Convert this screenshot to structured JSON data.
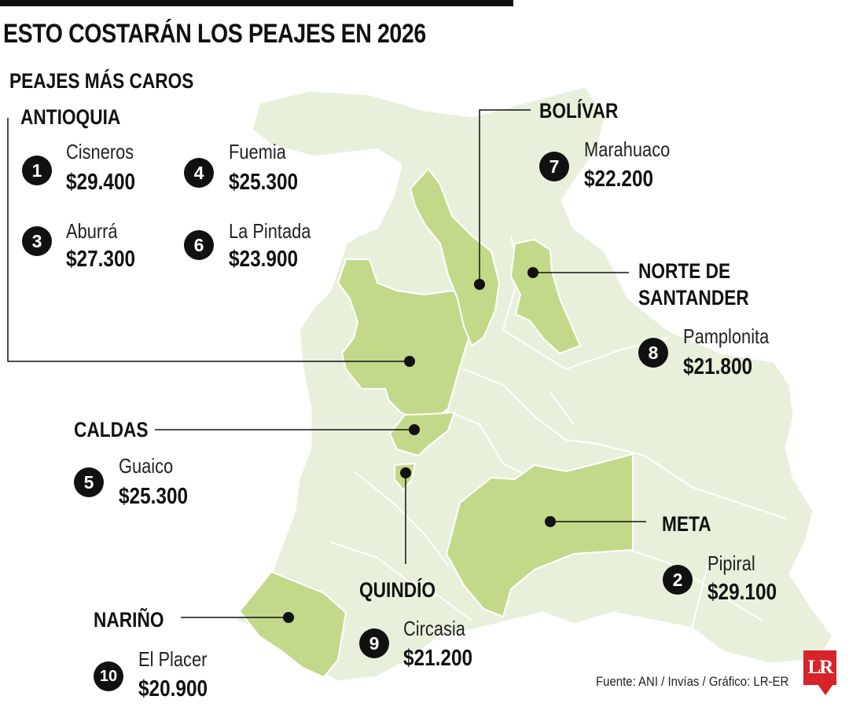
{
  "title": "ESTO COSTARÁN LOS PEAJES EN 2026",
  "subtitle": "PEAJES MÁS CAROS",
  "colors": {
    "country": "#e8f0dc",
    "highlight": "#c3d98a",
    "border": "#ffffff",
    "accent": "#111111",
    "logo": "#d8232a"
  },
  "departments": {
    "antioquia": "ANTIOQUIA",
    "bolivar": "BOLÍVAR",
    "norte_santander_1": "NORTE DE",
    "norte_santander_2": "SANTANDER",
    "caldas": "CALDAS",
    "meta": "META",
    "quindio": "QUINDÍO",
    "narino": "NARIÑO"
  },
  "tolls": [
    {
      "rank": "1",
      "name": "Cisneros",
      "price": "$29.400"
    },
    {
      "rank": "2",
      "name": "Pipiral",
      "price": "$29.100"
    },
    {
      "rank": "3",
      "name": "Aburrá",
      "price": "$27.300"
    },
    {
      "rank": "4",
      "name": "Fuemia",
      "price": "$25.300"
    },
    {
      "rank": "5",
      "name": "Guaico",
      "price": "$25.300"
    },
    {
      "rank": "6",
      "name": "La Pintada",
      "price": "$23.900"
    },
    {
      "rank": "7",
      "name": "Marahuaco",
      "price": "$22.200"
    },
    {
      "rank": "8",
      "name": "Pamplonita",
      "price": "$21.800"
    },
    {
      "rank": "9",
      "name": "Circasia",
      "price": "$21.200"
    },
    {
      "rank": "10",
      "name": "El Placer",
      "price": "$20.900"
    }
  ],
  "source": "Fuente: ANI / Invías / Gráfico: LR-ER",
  "logo": "LR"
}
